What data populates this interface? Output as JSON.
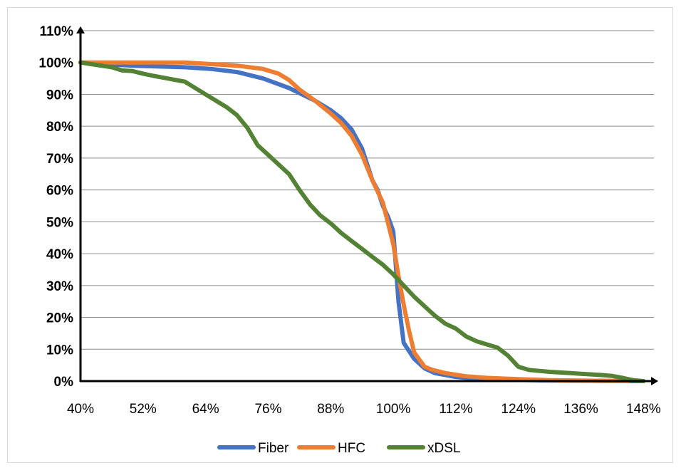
{
  "chart_data": {
    "type": "line",
    "title": "",
    "xlabel": "",
    "ylabel": "",
    "xlim": [
      40,
      150
    ],
    "ylim": [
      0,
      110
    ],
    "x_ticks": [
      "40%",
      "52%",
      "64%",
      "76%",
      "88%",
      "100%",
      "112%",
      "124%",
      "136%",
      "148%"
    ],
    "x_tick_values": [
      40,
      52,
      64,
      76,
      88,
      100,
      112,
      124,
      136,
      148
    ],
    "y_ticks": [
      "0%",
      "10%",
      "20%",
      "30%",
      "40%",
      "50%",
      "60%",
      "70%",
      "80%",
      "90%",
      "100%",
      "110%"
    ],
    "y_tick_values": [
      0,
      10,
      20,
      30,
      40,
      50,
      60,
      70,
      80,
      90,
      100,
      110
    ],
    "grid": "horizontal",
    "legend_position": "bottom",
    "series": [
      {
        "name": "Fiber",
        "color": "#4472c4",
        "x": [
          40,
          50,
          60,
          65,
          70,
          75,
          80,
          85,
          88,
          90,
          92,
          94,
          96,
          97,
          98,
          99,
          100,
          101,
          102,
          104,
          106,
          108,
          112,
          116,
          120,
          130,
          140,
          148
        ],
        "y": [
          100,
          99,
          98.5,
          98,
          97,
          95,
          92,
          88,
          85,
          82.5,
          79,
          73,
          63,
          60,
          55,
          51.5,
          47,
          25,
          12,
          7,
          4,
          2.5,
          1.3,
          0.7,
          0.5,
          0.2,
          0.05,
          0
        ]
      },
      {
        "name": "HFC",
        "color": "#ed7d31",
        "x": [
          40,
          50,
          60,
          65,
          70,
          75,
          78,
          80,
          82,
          85,
          88,
          90,
          92,
          94,
          96,
          98,
          100,
          101,
          102,
          103,
          104,
          106,
          107.5,
          110,
          114,
          118,
          124,
          130,
          140,
          145
        ],
        "y": [
          100,
          100,
          100,
          99.5,
          99,
          98,
          96.5,
          94.5,
          91.5,
          88,
          84,
          81,
          77,
          71,
          63,
          56,
          43,
          33,
          24,
          16,
          9,
          4.5,
          3.5,
          2.5,
          1.5,
          1,
          0.6,
          0.3,
          0.1,
          0
        ]
      },
      {
        "name": "xDSL",
        "color": "#548235",
        "x": [
          40,
          42,
          44,
          46,
          48,
          50,
          52,
          54,
          56,
          58,
          60,
          62,
          64,
          66,
          68,
          70,
          72,
          74,
          76,
          78,
          80,
          82,
          84,
          86,
          88,
          90,
          92,
          94,
          96,
          98,
          100,
          102,
          104,
          106,
          108,
          110,
          112,
          114,
          116,
          118,
          120,
          122,
          124,
          126,
          128,
          130,
          132,
          134,
          136,
          138,
          140,
          142,
          144,
          146,
          148
        ],
        "y": [
          100,
          99.5,
          99,
          98.5,
          97.5,
          97.3,
          96.5,
          95.8,
          95.2,
          94.6,
          94,
          92,
          90,
          88,
          86,
          83.5,
          79.5,
          74,
          71,
          68,
          65,
          60,
          55.5,
          52,
          49.5,
          46.5,
          44,
          41.5,
          39,
          36.5,
          33.5,
          30,
          26.5,
          23.5,
          20.5,
          18,
          16.5,
          14,
          12.5,
          11.5,
          10.5,
          8,
          4.5,
          3.5,
          3.2,
          2.9,
          2.7,
          2.5,
          2.3,
          2.1,
          1.9,
          1.6,
          1,
          0.3,
          0
        ]
      }
    ]
  }
}
